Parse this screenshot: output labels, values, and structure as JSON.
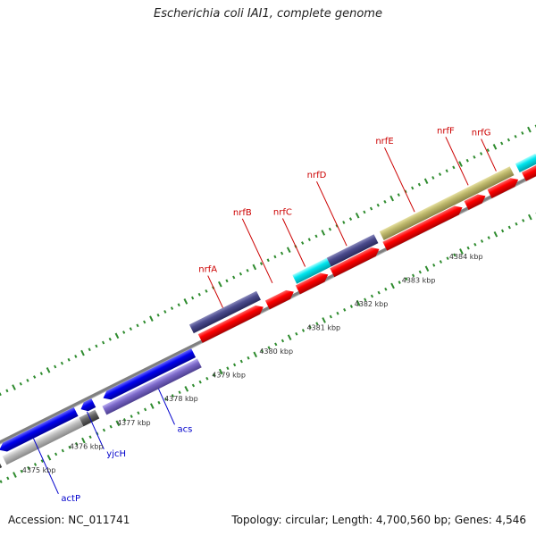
{
  "title": "Escherichia coli IAI1, complete genome",
  "footer": {
    "accession": "Accession: NC_011741",
    "summary": "Topology: circular; Length: 4,700,560 bp; Genes: 4,546"
  },
  "ruler_labels": [
    "4375 kbp",
    "4376 kbp",
    "4377 kbp",
    "4378 kbp",
    "4379 kbp",
    "4380 kbp",
    "4381 kbp",
    "4382 kbp",
    "4383 kbp",
    "4384 kbp"
  ],
  "gene_labels": {
    "forward": [
      "nrfA",
      "nrfB",
      "nrfC",
      "nrfD",
      "nrfE",
      "nrfF",
      "nrfG"
    ],
    "reverse": [
      "actP",
      "yjcH",
      "acs"
    ]
  },
  "colors": {
    "forward_label": "#cc0000",
    "reverse_label": "#0000cc",
    "ruler_text": "#333333",
    "dots": "#2e8b2e",
    "backbone": "#808080",
    "red": "#ff0000",
    "navy": "#4a4a8c",
    "olive": "#bdb76b",
    "cyan": "#00e5ee",
    "blue": "#0000ee",
    "lavender": "#7b68c8",
    "gray_light": "#bbbbbb",
    "gray_dark": "#666666"
  }
}
